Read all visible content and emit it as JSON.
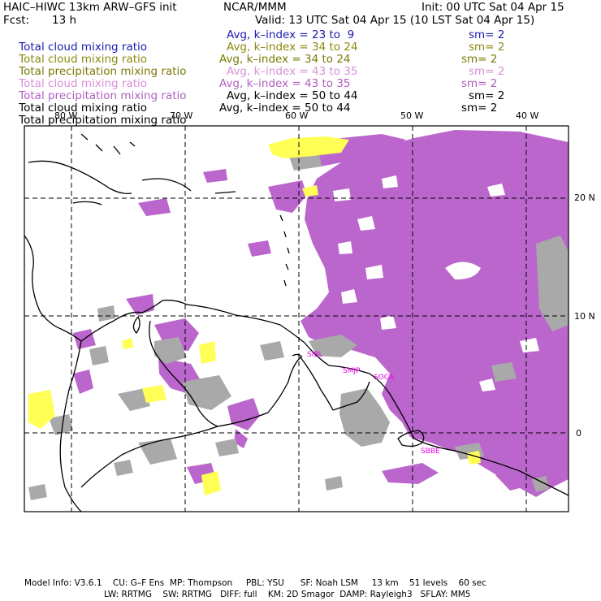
{
  "header": {
    "title": "HAIC–HIWC 13km ARW–GFS init",
    "org": "NCAR/MMM",
    "init": "Init: 00 UTC Sat 04 Apr 15",
    "fcst_label": "Fcst:",
    "fcst_value": "13 h",
    "valid": "Valid: 13 UTC Sat 04 Apr 15 (10 LST Sat 04 Apr 15)"
  },
  "fields": [
    {
      "name": "Total cloud mixing ratio",
      "avg": "Avg, k–index =",
      "k1": "23",
      "to": "to",
      "k2": "9",
      "sm": "sm= 2",
      "color": "#1a1ab0"
    },
    {
      "name": "Total cloud mixing ratio",
      "avg": "Avg, k–index =",
      "k1": "34",
      "to": "to",
      "k2": "24",
      "sm": "sm= 2",
      "color": "#8a8a10"
    },
    {
      "name": "Total precipitation mixing ratio",
      "avg": "Avg, k–index =",
      "k1": "34",
      "to": "to",
      "k2": "24",
      "sm": "sm= 2",
      "color": "#7a7a08"
    },
    {
      "name": "Total cloud mixing ratio",
      "avg": "Avg, k–index =",
      "k1": "43",
      "to": "to",
      "k2": "35",
      "sm": "sm= 2",
      "color": "#d890d8"
    },
    {
      "name": "Total precipitation mixing ratio",
      "avg": "Avg, k–index =",
      "k1": "43",
      "to": "to",
      "k2": "35",
      "sm": "sm= 2",
      "color": "#b060c0"
    },
    {
      "name": "Total cloud mixing ratio",
      "avg": "Avg, k–index =",
      "k1": "50",
      "to": "to",
      "k2": "44",
      "sm": "sm= 2",
      "color": "#000000"
    },
    {
      "name": "Total precipitation mixing ratio",
      "avg": "Avg, k–index =",
      "k1": "50",
      "to": "to",
      "k2": "44",
      "sm": "sm= 2",
      "color": "#000000"
    }
  ],
  "map": {
    "lon_labels": [
      "80 W",
      "70 W",
      "60 W",
      "50 W",
      "40 W"
    ],
    "lat_labels": [
      "20 N",
      "10 N",
      "0"
    ],
    "stations": [
      "SIBL",
      "SMJP",
      "SOCA",
      "SBBE"
    ],
    "colors": {
      "purple": "#bb66cc",
      "gray": "#a9a9a9",
      "yellow": "#ffff55",
      "coast": "#000000",
      "station": "#ee00ee"
    }
  },
  "footer": {
    "line1": "Model Info: V3.6.1    CU: G–F Ens  MP: Thompson     PBL: YSU      SF: Noah LSM     13 km    51 levels    60 sec",
    "line2": "LW: RRTMG    SW: RRTMG   DIFF: full    KM: 2D Smagor  DAMP: Rayleigh3   SFLAY: MM5"
  }
}
